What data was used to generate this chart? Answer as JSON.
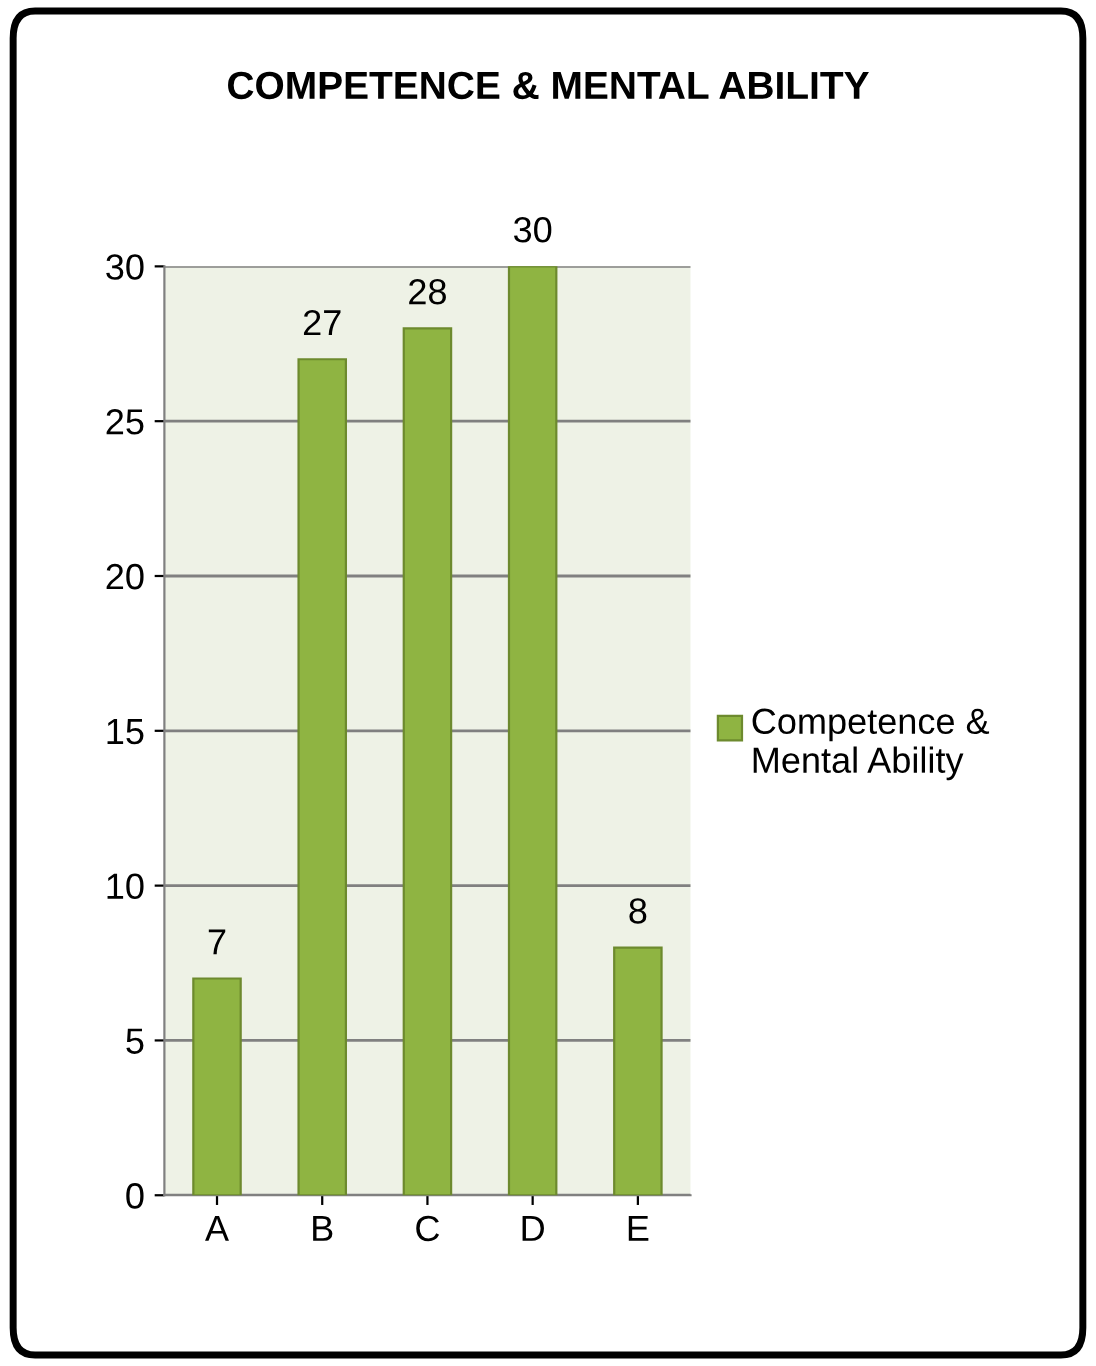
{
  "chart_data": {
    "type": "bar",
    "title": "COMPETENCE & MENTAL ABILITY",
    "categories": [
      "A",
      "B",
      "C",
      "D",
      "E"
    ],
    "series": [
      {
        "name": "Competence & Mental Ability",
        "color": "#8fb442",
        "values": [
          7,
          27,
          28,
          30,
          8
        ]
      }
    ],
    "ylim": [
      0,
      30
    ],
    "yticks": [
      0,
      5,
      10,
      15,
      20,
      25,
      30
    ],
    "grid": "y",
    "legend": "right",
    "data_labels": true
  }
}
